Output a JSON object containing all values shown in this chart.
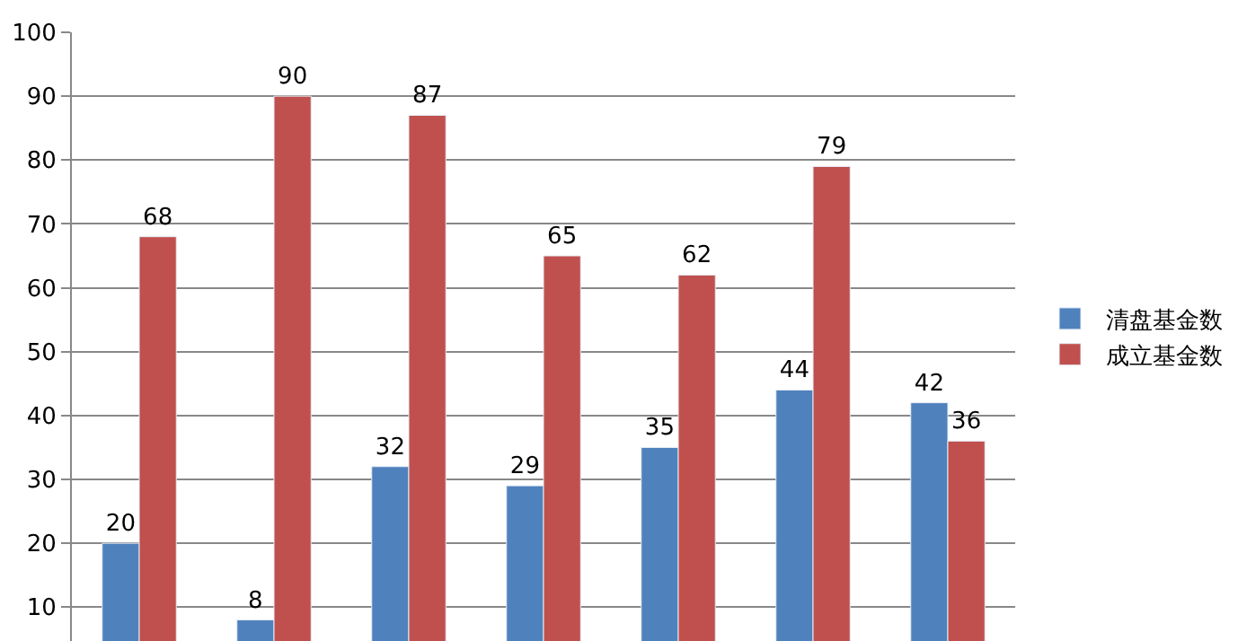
{
  "chart_data": {
    "type": "bar",
    "categories": [
      null,
      null,
      null,
      null,
      null,
      null,
      null
    ],
    "series": [
      {
        "name": "清盘基金数",
        "color": "#4f81bd",
        "values": [
          20,
          8,
          32,
          29,
          35,
          44,
          42
        ]
      },
      {
        "name": "成立基金数",
        "color": "#c0504d",
        "values": [
          68,
          90,
          87,
          65,
          62,
          79,
          36
        ]
      }
    ],
    "ylim": [
      4.7,
      100
    ],
    "yticks": [
      10,
      20,
      30,
      40,
      50,
      60,
      70,
      80,
      90,
      100
    ],
    "grid": "y",
    "legend": "right",
    "data_labels": true
  }
}
